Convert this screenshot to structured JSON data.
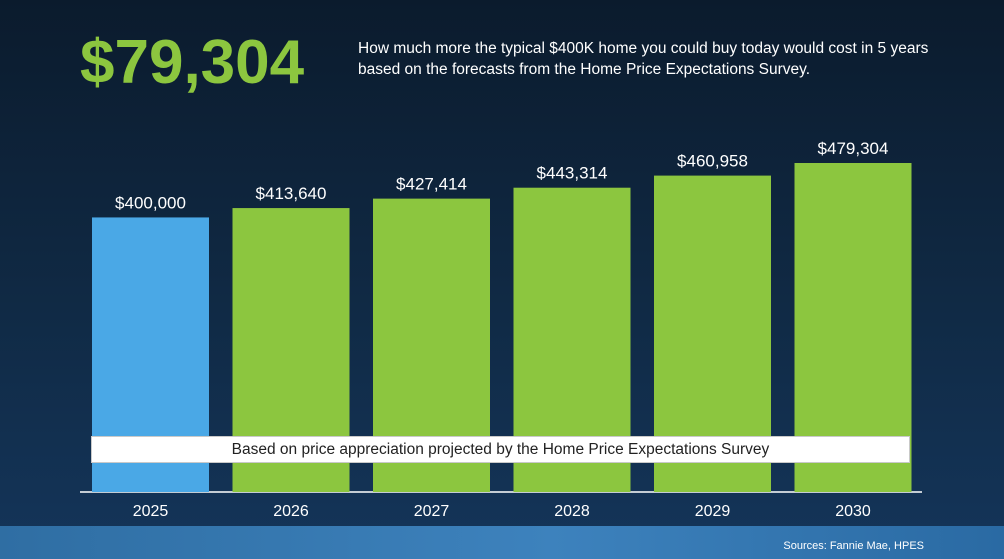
{
  "headline": "$79,304",
  "description": "How much more the typical $400K home you could buy today would cost in 5 years based on the forecasts from the Home Price Expectations Survey.",
  "note": "Based on price appreciation projected by the Home Price Expectations Survey",
  "source": "Sources: Fannie Mae, HPES",
  "colors": {
    "headline": "#8cc63f",
    "current_bar": "#4aa8e6",
    "forecast_bar": "#8cc63f",
    "background_dark": "#0b1b2d",
    "text": "#ffffff"
  },
  "chart_data": {
    "type": "bar",
    "categories": [
      "2025",
      "2026",
      "2027",
      "2028",
      "2029",
      "2030"
    ],
    "values": [
      400000,
      413640,
      427414,
      443314,
      460958,
      479304
    ],
    "data_labels": [
      "$400,000",
      "$413,640",
      "$427,414",
      "$443,314",
      "$460,958",
      "$479,304"
    ],
    "bar_colors": [
      "#4aa8e6",
      "#8cc63f",
      "#8cc63f",
      "#8cc63f",
      "#8cc63f",
      "#8cc63f"
    ],
    "title": "",
    "xlabel": "",
    "ylabel": "",
    "grid": false,
    "legend": "none"
  }
}
